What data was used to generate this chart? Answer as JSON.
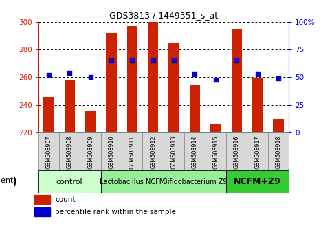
{
  "title": "GDS3813 / 1449351_s_at",
  "samples": [
    "GSM508907",
    "GSM508908",
    "GSM508909",
    "GSM508910",
    "GSM508911",
    "GSM508912",
    "GSM508913",
    "GSM508914",
    "GSM508915",
    "GSM508916",
    "GSM508917",
    "GSM508918"
  ],
  "counts": [
    246,
    258,
    236,
    292,
    297,
    300,
    285,
    254,
    226,
    295,
    259,
    230
  ],
  "percentiles": [
    52,
    54,
    50,
    65,
    65,
    65,
    65,
    53,
    48,
    65,
    53,
    49
  ],
  "ymin": 220,
  "ymax": 300,
  "yticks": [
    220,
    240,
    260,
    280,
    300
  ],
  "y2ticks": [
    0,
    25,
    50,
    75,
    100
  ],
  "bar_color": "#cc2200",
  "dot_color": "#0000cc",
  "grid_color": "#000000",
  "bar_width": 0.5,
  "groups": [
    {
      "label": "control",
      "start": 0,
      "end": 3,
      "color": "#ccffcc",
      "bold": false,
      "fontsize": 8
    },
    {
      "label": "Lactobacillus NCFM",
      "start": 3,
      "end": 6,
      "color": "#99ee99",
      "bold": false,
      "fontsize": 7
    },
    {
      "label": "Bifidobacterium Z9",
      "start": 6,
      "end": 9,
      "color": "#99ee99",
      "bold": false,
      "fontsize": 7
    },
    {
      "label": "NCFM+Z9",
      "start": 9,
      "end": 12,
      "color": "#33cc33",
      "bold": true,
      "fontsize": 9
    }
  ],
  "xlabel_agent": "agent",
  "legend_count": "count",
  "legend_pct": "percentile rank within the sample",
  "title_color": "#000000",
  "left_axis_color": "#cc2200",
  "right_axis_color": "#0000cc",
  "sample_box_color": "#d8d8d8",
  "sample_box_edge": "#888888"
}
